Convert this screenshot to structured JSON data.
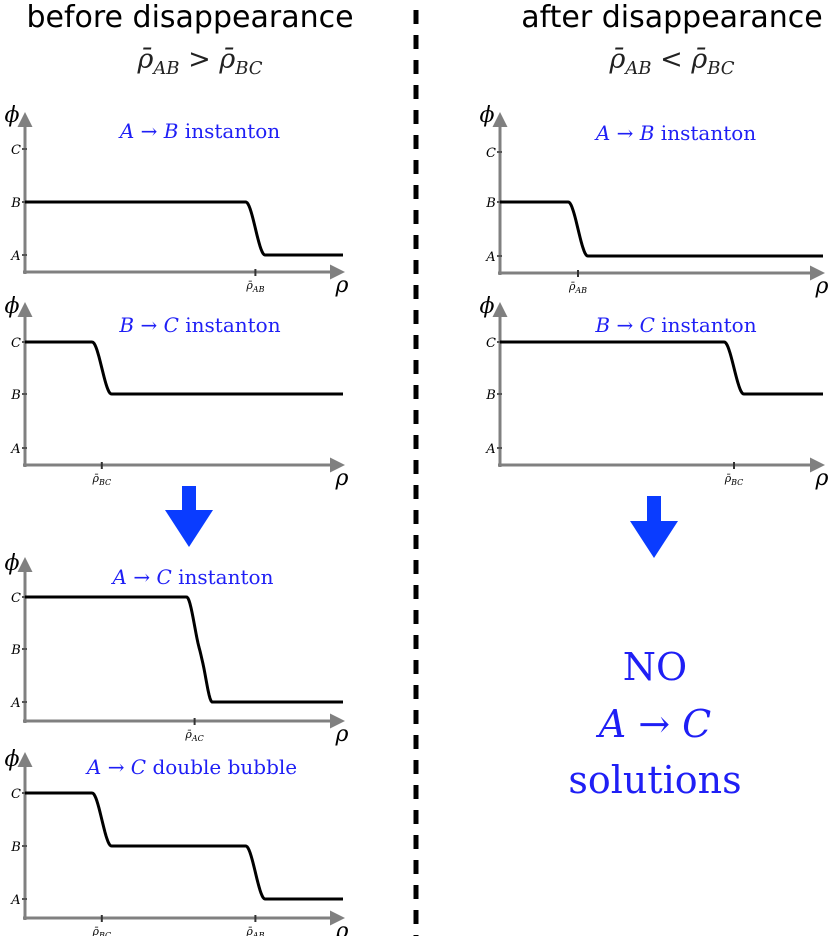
{
  "headings": {
    "left": "before disappearance",
    "left_condition": "ρ̄AB > ρ̄BC",
    "right": "after disappearance",
    "right_condition": "ρ̄AB < ρ̄BC"
  },
  "colors": {
    "title_blue": "#1f1ff5",
    "arrow_blue": "#0a3cff",
    "axis_gray": "#808080",
    "curve_black": "#000000"
  },
  "no_solutions": {
    "line1": "NO",
    "line2": "A → C",
    "line3": "solutions"
  },
  "panels": [
    {
      "id": "left-ab",
      "title": "A → B instanton",
      "y_axis_label": "ϕ",
      "x_axis_label": "ρ",
      "y_ticks": [
        "A",
        "B",
        "C"
      ],
      "x_tick": "ρ̄AB",
      "x_tick_value": 0.72,
      "curve": {
        "type": "single",
        "from": "B",
        "to": "A",
        "wall_at": 0.72
      }
    },
    {
      "id": "left-bc",
      "title": "B → C instanton",
      "y_axis_label": "ϕ",
      "x_axis_label": "ρ",
      "y_ticks": [
        "A",
        "B",
        "C"
      ],
      "x_tick": "ρ̄BC",
      "x_tick_value": 0.24,
      "curve": {
        "type": "single",
        "from": "C",
        "to": "B",
        "wall_at": 0.24
      }
    },
    {
      "id": "left-ac",
      "title": "A → C instanton",
      "y_axis_label": "ϕ",
      "x_axis_label": "ρ",
      "y_ticks": [
        "A",
        "B",
        "C"
      ],
      "x_tick": "ρ̄AC",
      "x_tick_value": 0.53,
      "curve": {
        "type": "kinked",
        "from": "C",
        "to": "A",
        "wall_at": 0.53
      }
    },
    {
      "id": "left-double",
      "title": "A → C double bubble",
      "y_axis_label": "ϕ",
      "x_axis_label": "ρ",
      "y_ticks": [
        "A",
        "B",
        "C"
      ],
      "x_ticks": [
        "ρ̄BC",
        "ρ̄AB"
      ],
      "x_tick_values": [
        0.24,
        0.72
      ],
      "curve": {
        "type": "double",
        "from": "C",
        "mid": "B",
        "to": "A",
        "walls_at": [
          0.24,
          0.72
        ]
      }
    },
    {
      "id": "right-ab",
      "title": "A → B instanton",
      "y_axis_label": "ϕ",
      "x_axis_label": "ρ",
      "y_ticks": [
        "A",
        "B",
        "C"
      ],
      "x_tick": "ρ̄AB",
      "x_tick_value": 0.24,
      "curve": {
        "type": "single",
        "from": "B",
        "to": "A",
        "wall_at": 0.24
      }
    },
    {
      "id": "right-bc",
      "title": "B → C instanton",
      "y_axis_label": "ϕ",
      "x_axis_label": "ρ",
      "y_ticks": [
        "A",
        "B",
        "C"
      ],
      "x_tick": "ρ̄BC",
      "x_tick_value": 0.72,
      "curve": {
        "type": "single",
        "from": "C",
        "to": "B",
        "wall_at": 0.72
      }
    }
  ]
}
